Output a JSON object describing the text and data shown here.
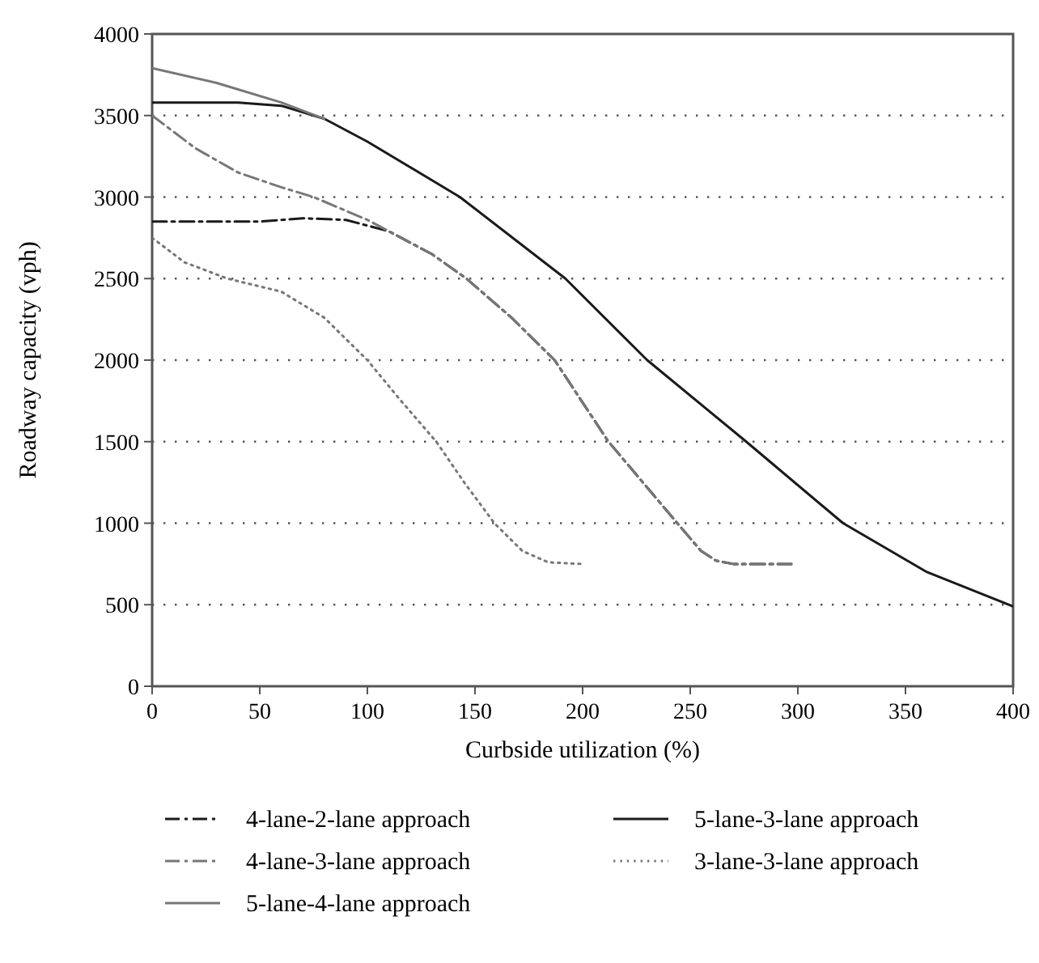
{
  "chart_data": {
    "type": "line",
    "xlabel": "Curbside utilization (%)",
    "ylabel": "Roadway capacity (vph)",
    "xlim": [
      0,
      400
    ],
    "xticks": [
      0,
      50,
      100,
      150,
      200,
      250,
      300,
      350,
      400
    ],
    "ylim": [
      0,
      4000
    ],
    "yticks": [
      0,
      500,
      1000,
      1500,
      2000,
      2500,
      3000,
      3500,
      4000
    ],
    "grid": "y",
    "legend": "bottom",
    "marker": "none",
    "series": [
      {
        "name": "4-lane-2-lane approach",
        "color": "#1a1a1a",
        "line_style": "dashed",
        "x": [
          0,
          50,
          70,
          90,
          110,
          130,
          146,
          167,
          187,
          212,
          244,
          255,
          262,
          270,
          297
        ],
        "values": [
          2850,
          2850,
          2870,
          2860,
          2790,
          2650,
          2500,
          2260,
          2000,
          1500,
          1000,
          830,
          770,
          750,
          750
        ]
      },
      {
        "name": "5-lane-3-lane approach",
        "color": "#1a1a1a",
        "line_style": "solid",
        "x": [
          0,
          40,
          60,
          80,
          100,
          143,
          192,
          230,
          276,
          321,
          360,
          400
        ],
        "values": [
          3580,
          3580,
          3560,
          3480,
          3340,
          3000,
          2500,
          2000,
          1500,
          1000,
          700,
          490
        ]
      },
      {
        "name": "4-lane-3-lane approach",
        "color": "#777777",
        "line_style": "dashed",
        "x": [
          0,
          20,
          40,
          60,
          75,
          100,
          130,
          146,
          167,
          187,
          212,
          244,
          255,
          262,
          270,
          297
        ],
        "values": [
          3500,
          3300,
          3150,
          3060,
          3000,
          2860,
          2650,
          2500,
          2260,
          2000,
          1500,
          1000,
          830,
          770,
          750,
          750
        ]
      },
      {
        "name": "3-lane-3-lane approach",
        "color": "#777777",
        "line_style": "dotted",
        "x": [
          0,
          15,
          35,
          60,
          80,
          100,
          115,
          132,
          145,
          159,
          172,
          184,
          199
        ],
        "values": [
          2750,
          2600,
          2500,
          2420,
          2260,
          2000,
          1760,
          1500,
          1250,
          1000,
          830,
          760,
          750
        ]
      },
      {
        "name": "5-lane-4-lane approach",
        "color": "#777777",
        "line_style": "solid",
        "x": [
          0,
          30,
          60,
          80
        ],
        "values": [
          3790,
          3700,
          3580,
          3480
        ]
      }
    ]
  }
}
